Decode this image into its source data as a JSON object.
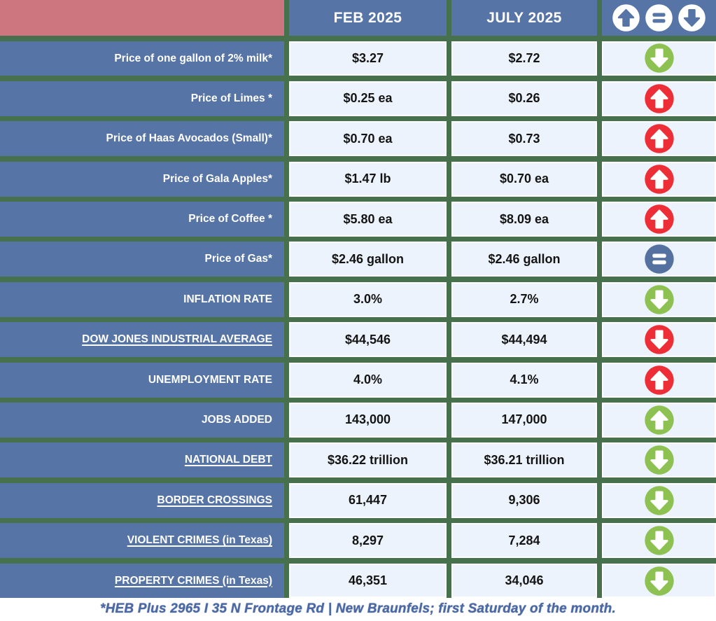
{
  "header": {
    "spacer": "",
    "columns": [
      "FEB 2025",
      "JULY 2025"
    ],
    "legend_icons": [
      "up-arrow",
      "equal",
      "down-arrow"
    ]
  },
  "rows": [
    {
      "label": "Price of one gallon of 2% milk*",
      "underlined": false,
      "feb": "$3.27",
      "july": "$2.72",
      "trend": "down",
      "trend_color": "green"
    },
    {
      "label": "Price of Limes *",
      "underlined": false,
      "feb": "$0.25 ea",
      "july": "$0.26",
      "trend": "up",
      "trend_color": "red"
    },
    {
      "label": "Price of Haas Avocados (Small)*",
      "underlined": false,
      "feb": "$0.70 ea",
      "july": "$0.73",
      "trend": "up",
      "trend_color": "red"
    },
    {
      "label": "Price of Gala Apples*",
      "underlined": false,
      "feb": "$1.47 lb",
      "july": "$0.70 ea",
      "trend": "up",
      "trend_color": "red"
    },
    {
      "label": "Price of Coffee *",
      "underlined": false,
      "feb": "$5.80 ea",
      "july": "$8.09 ea",
      "trend": "up",
      "trend_color": "red"
    },
    {
      "label": "Price of Gas*",
      "underlined": false,
      "feb": "$2.46 gallon",
      "july": "$2.46 gallon",
      "trend": "equal",
      "trend_color": "blue"
    },
    {
      "label": "INFLATION RATE",
      "underlined": false,
      "feb": "3.0%",
      "july": "2.7%",
      "trend": "down",
      "trend_color": "green"
    },
    {
      "label": "DOW JONES INDUSTRIAL AVERAGE",
      "underlined": true,
      "feb": "$44,546",
      "july": "$44,494",
      "trend": "down",
      "trend_color": "red"
    },
    {
      "label": "UNEMPLOYMENT RATE",
      "underlined": false,
      "feb": "4.0%",
      "july": "4.1%",
      "trend": "up",
      "trend_color": "red"
    },
    {
      "label": "JOBS ADDED",
      "underlined": false,
      "feb": "143,000",
      "july": "147,000",
      "trend": "up",
      "trend_color": "green"
    },
    {
      "label": "NATIONAL DEBT",
      "underlined": true,
      "feb": "$36.22 trillion",
      "july": "$36.21 trillion",
      "trend": "down",
      "trend_color": "green"
    },
    {
      "label": "BORDER CROSSINGS",
      "underlined": true,
      "feb": "61,447",
      "july": "9,306",
      "trend": "down",
      "trend_color": "green"
    },
    {
      "label": "VIOLENT CRIMES (in Texas)",
      "underlined": true,
      "feb": "8,297",
      "july": "7,284",
      "trend": "down",
      "trend_color": "green"
    },
    {
      "label": "PROPERTY CRIMES (in Texas)",
      "underlined": true,
      "feb": "46,351",
      "july": "34,046",
      "trend": "down",
      "trend_color": "green"
    }
  ],
  "footer": {
    "note": "*HEB Plus 2965 I 35 N Frontage Rd | New Braunfels; first Saturday of the month."
  },
  "colors": {
    "header_pink": "#cd767f",
    "header_blue": "#5674a5",
    "grid_green": "#47714d",
    "cell_light": "#edf3fc",
    "trend_red": "#ee2e36",
    "trend_green": "#8dc152",
    "trend_blue": "#54719f",
    "footer_text": "#4a69a4"
  },
  "chart_data": {
    "type": "table",
    "title": "",
    "categories": [
      "Price of one gallon of 2% milk*",
      "Price of Limes *",
      "Price of Haas Avocados (Small)*",
      "Price of Gala Apples*",
      "Price of Coffee *",
      "Price of Gas*",
      "INFLATION RATE",
      "DOW JONES INDUSTRIAL AVERAGE",
      "UNEMPLOYMENT RATE",
      "JOBS ADDED",
      "NATIONAL DEBT",
      "BORDER CROSSINGS",
      "VIOLENT CRIMES (in Texas)",
      "PROPERTY CRIMES (in Texas)"
    ],
    "series": [
      {
        "name": "FEB 2025",
        "values": [
          "$3.27",
          "$0.25 ea",
          "$0.70 ea",
          "$1.47 lb",
          "$5.80 ea",
          "$2.46 gallon",
          "3.0%",
          "$44,546",
          "4.0%",
          "143,000",
          "$36.22 trillion",
          "61,447",
          "8,297",
          "46,351"
        ]
      },
      {
        "name": "JULY 2025",
        "values": [
          "$2.72",
          "$0.26",
          "$0.73",
          "$0.70 ea",
          "$8.09 ea",
          "$2.46 gallon",
          "2.7%",
          "$44,494",
          "4.1%",
          "147,000",
          "$36.21 trillion",
          "9,306",
          "7,284",
          "34,046"
        ]
      },
      {
        "name": "Trend",
        "values": [
          "down",
          "up",
          "up",
          "up",
          "up",
          "equal",
          "down",
          "down",
          "up",
          "up",
          "down",
          "down",
          "down",
          "down"
        ]
      }
    ],
    "legend_entries": [
      "up-arrow (increase)",
      "equal (no change)",
      "down-arrow (decrease)"
    ],
    "annotations": [
      "*HEB Plus 2965 I 35 N Frontage Rd | New Braunfels; first Saturday of the month."
    ]
  }
}
